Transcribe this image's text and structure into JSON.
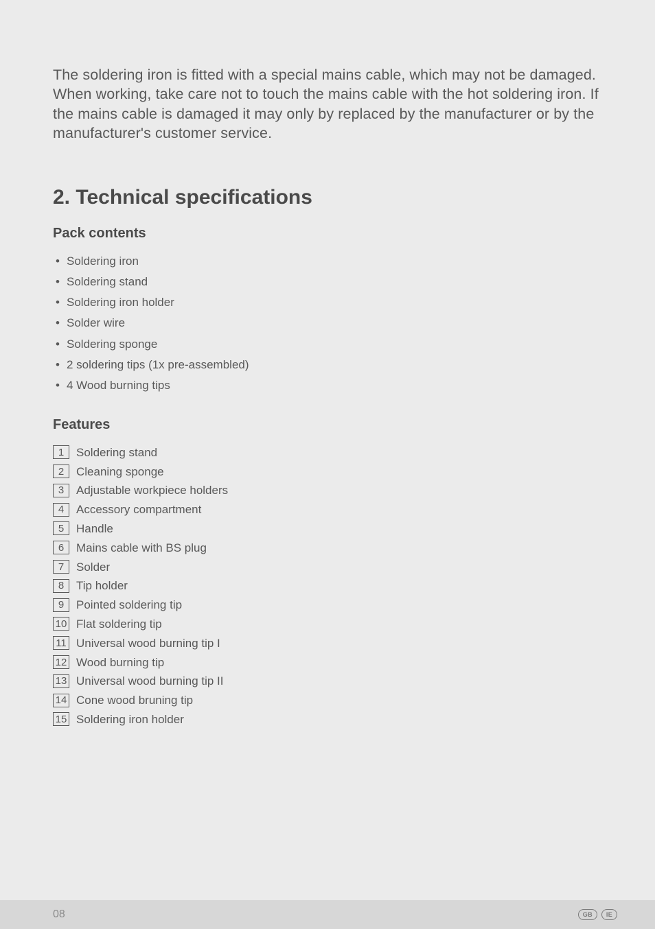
{
  "intro": "The soldering iron is fitted with a special mains cable, which may not be damaged. When working, take care not to touch the mains cable with the hot soldering iron. If the mains cable is damaged it may only by replaced by the manufacturer or by the manufacturer's customer service.",
  "section_heading": "2. Technical specifications",
  "pack_contents": {
    "heading": "Pack contents",
    "items": [
      "Soldering iron",
      "Soldering stand",
      "Soldering iron holder",
      "Solder wire",
      "Soldering sponge",
      "2 soldering tips (1x pre-assembled)",
      "4 Wood burning tips"
    ]
  },
  "features": {
    "heading": "Features",
    "items": [
      {
        "n": "1",
        "label": "Soldering stand"
      },
      {
        "n": "2",
        "label": "Cleaning sponge"
      },
      {
        "n": "3",
        "label": "Adjustable workpiece holders"
      },
      {
        "n": "4",
        "label": "Accessory compartment"
      },
      {
        "n": "5",
        "label": "Handle"
      },
      {
        "n": "6",
        "label": "Mains cable with BS plug"
      },
      {
        "n": "7",
        "label": "Solder"
      },
      {
        "n": "8",
        "label": "Tip holder"
      },
      {
        "n": "9",
        "label": "Pointed soldering tip"
      },
      {
        "n": "10",
        "label": "Flat soldering tip"
      },
      {
        "n": "11",
        "label": "Universal wood burning tip I"
      },
      {
        "n": "12",
        "label": "Wood burning tip"
      },
      {
        "n": "13",
        "label": "Universal wood burning tip II"
      },
      {
        "n": "14",
        "label": "Cone wood bruning tip"
      },
      {
        "n": "15",
        "label": "Soldering iron holder"
      }
    ]
  },
  "footer": {
    "page": "08",
    "badges": [
      "GB",
      "IE"
    ]
  },
  "style": {
    "page_bg": "#ebebeb",
    "footer_bg": "#d7d7d7",
    "text_color": "#595959",
    "heading_color": "#4a4a4a",
    "body_font_size": 17,
    "intro_font_size": 21.5,
    "h1_font_size": 30,
    "h2_font_size": 20
  }
}
